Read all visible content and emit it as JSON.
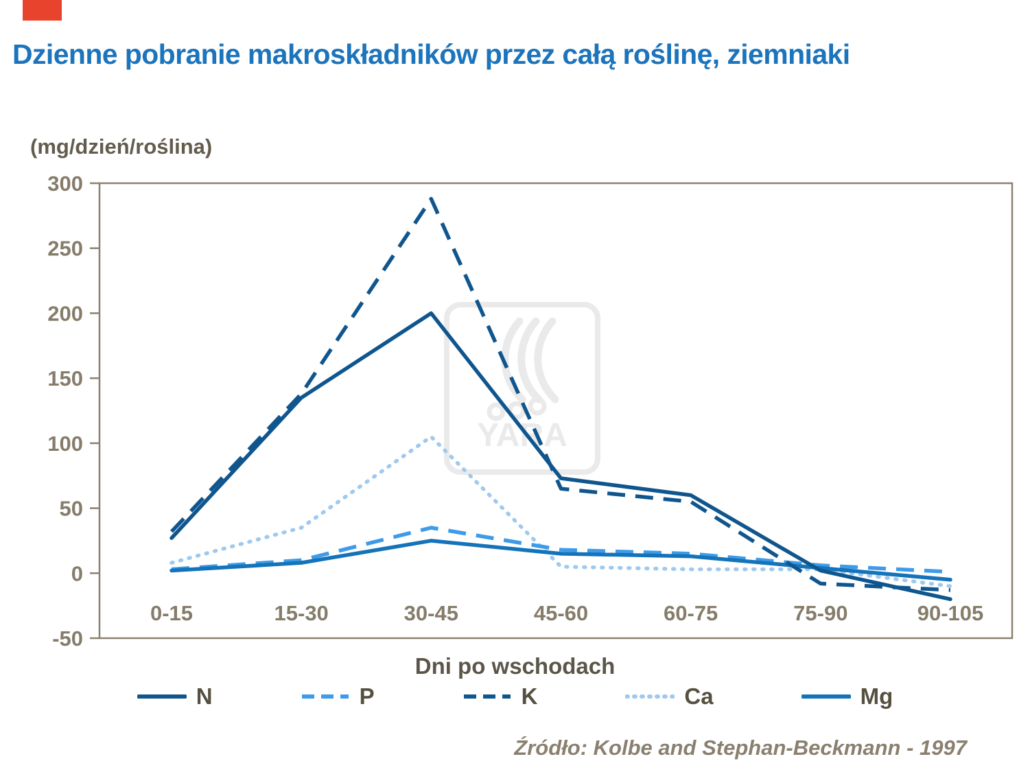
{
  "brand_color": "#e8432d",
  "watermark_text": "YARA",
  "source": "Źródło: Kolbe and Stephan-Beckmann  - 1997",
  "chart_data": {
    "type": "line",
    "title": "Dzienne pobranie makroskładników przez całą roślinę, ziemniaki",
    "unit_label": "(mg/dzień/roślina)",
    "xlabel": "Dni po wschodach",
    "categories": [
      "0-15",
      "15-30",
      "30-45",
      "45-60",
      "60-75",
      "75-90",
      "90-105"
    ],
    "ylim": [
      -50,
      300
    ],
    "ytick_step": 50,
    "grid": false,
    "legend_position": "bottom",
    "axis_color": "#8a8170",
    "tick_label_color": "#857c6a",
    "series": [
      {
        "name": "N",
        "color": "#10568e",
        "style": "solid",
        "values": [
          27,
          135,
          200,
          73,
          60,
          2,
          -20
        ]
      },
      {
        "name": "P",
        "color": "#3d9be9",
        "style": "dashed",
        "values": [
          3,
          10,
          35,
          18,
          15,
          6,
          1
        ]
      },
      {
        "name": "K",
        "color": "#10568e",
        "style": "dashed",
        "values": [
          32,
          138,
          288,
          65,
          55,
          -8,
          -13
        ]
      },
      {
        "name": "Ca",
        "color": "#9fc9ef",
        "style": "dotted",
        "values": [
          8,
          35,
          105,
          5,
          3,
          3,
          -10
        ]
      },
      {
        "name": "Mg",
        "color": "#1573b9",
        "style": "solid",
        "values": [
          2,
          8,
          25,
          15,
          13,
          4,
          -5
        ]
      }
    ],
    "draw_order": [
      3,
      1,
      4,
      2,
      0
    ]
  }
}
